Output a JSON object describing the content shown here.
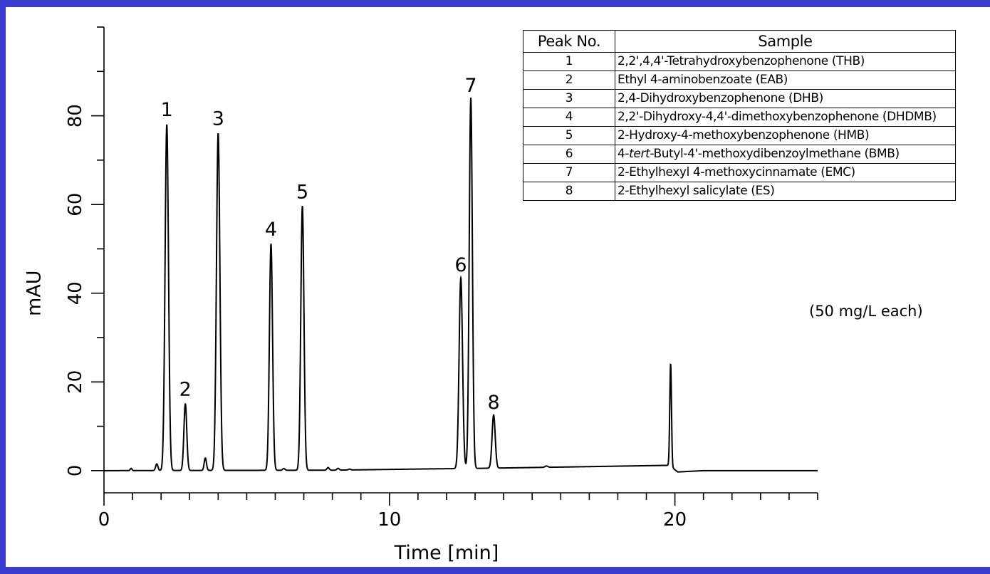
{
  "chart_data": {
    "type": "line",
    "xlabel": "Time [min]",
    "ylabel": "mAU",
    "xlim": [
      0,
      25
    ],
    "ylim": [
      -5,
      100
    ],
    "xticks": [
      0,
      10,
      20
    ],
    "yticks": [
      0,
      20,
      40,
      60,
      80
    ],
    "x_minor_step": 1,
    "y_minor_step": 10,
    "baseline": [
      [
        0,
        0
      ],
      [
        8,
        0.1
      ],
      [
        11.5,
        0.4
      ],
      [
        13,
        0.5
      ],
      [
        16,
        0.8
      ],
      [
        19.8,
        1.2
      ],
      [
        20.1,
        -0.3
      ],
      [
        21,
        0
      ],
      [
        25,
        0
      ]
    ],
    "peaks": [
      {
        "label": "1",
        "x": 2.2,
        "y": 78,
        "w": 0.06
      },
      {
        "label": "2",
        "x": 2.85,
        "y": 15,
        "w": 0.05
      },
      {
        "label": "3",
        "x": 4.0,
        "y": 76,
        "w": 0.06
      },
      {
        "label": "4",
        "x": 5.85,
        "y": 51,
        "w": 0.055
      },
      {
        "label": "5",
        "x": 6.95,
        "y": 59.5,
        "w": 0.055
      },
      {
        "label": "6",
        "x": 12.5,
        "y": 43,
        "w": 0.06
      },
      {
        "label": "7",
        "x": 12.85,
        "y": 83.5,
        "w": 0.055
      },
      {
        "label": "8",
        "x": 13.65,
        "y": 12,
        "w": 0.055
      }
    ],
    "minor_peaks": [
      {
        "x": 0.95,
        "y": 0.5,
        "w": 0.03
      },
      {
        "x": 1.85,
        "y": 1.5,
        "w": 0.04
      },
      {
        "x": 3.55,
        "y": 2.8,
        "w": 0.04
      },
      {
        "x": 6.3,
        "y": 0.4,
        "w": 0.04
      },
      {
        "x": 7.85,
        "y": 0.6,
        "w": 0.04
      },
      {
        "x": 8.2,
        "y": 0.4,
        "w": 0.04
      },
      {
        "x": 8.6,
        "y": 0.2,
        "w": 0.04
      },
      {
        "x": 15.5,
        "y": 0.3,
        "w": 0.05
      },
      {
        "x": 19.85,
        "y": 23,
        "w": 0.03
      }
    ],
    "legend": {
      "header_no": "Peak No.",
      "header_sample": "Sample",
      "rows": [
        {
          "no": "1",
          "sample": "2,2',4,4'-Tetrahydroxybenzophenone (THB)"
        },
        {
          "no": "2",
          "sample": "Ethyl 4-aminobenzoate (EAB)"
        },
        {
          "no": "3",
          "sample": "2,4-Dihydroxybenzophenone (DHB)"
        },
        {
          "no": "4",
          "sample": "2,2'-Dihydroxy-4,4'-dimethoxybenzophenone (DHDMB)"
        },
        {
          "no": "5",
          "sample": "2-Hydroxy-4-methoxybenzophenone (HMB)"
        },
        {
          "no": "6",
          "sample_prefix": "4-",
          "sample_italic": "tert",
          "sample_suffix": "-Butyl-4'-methoxydibenzoylmethane (BMB)"
        },
        {
          "no": "7",
          "sample": "2-Ethylhexyl 4-methoxycinnamate (EMC)"
        },
        {
          "no": "8",
          "sample": "2-Ethylhexyl salicylate (ES)"
        }
      ],
      "note": "(50 mg/L each)"
    }
  }
}
